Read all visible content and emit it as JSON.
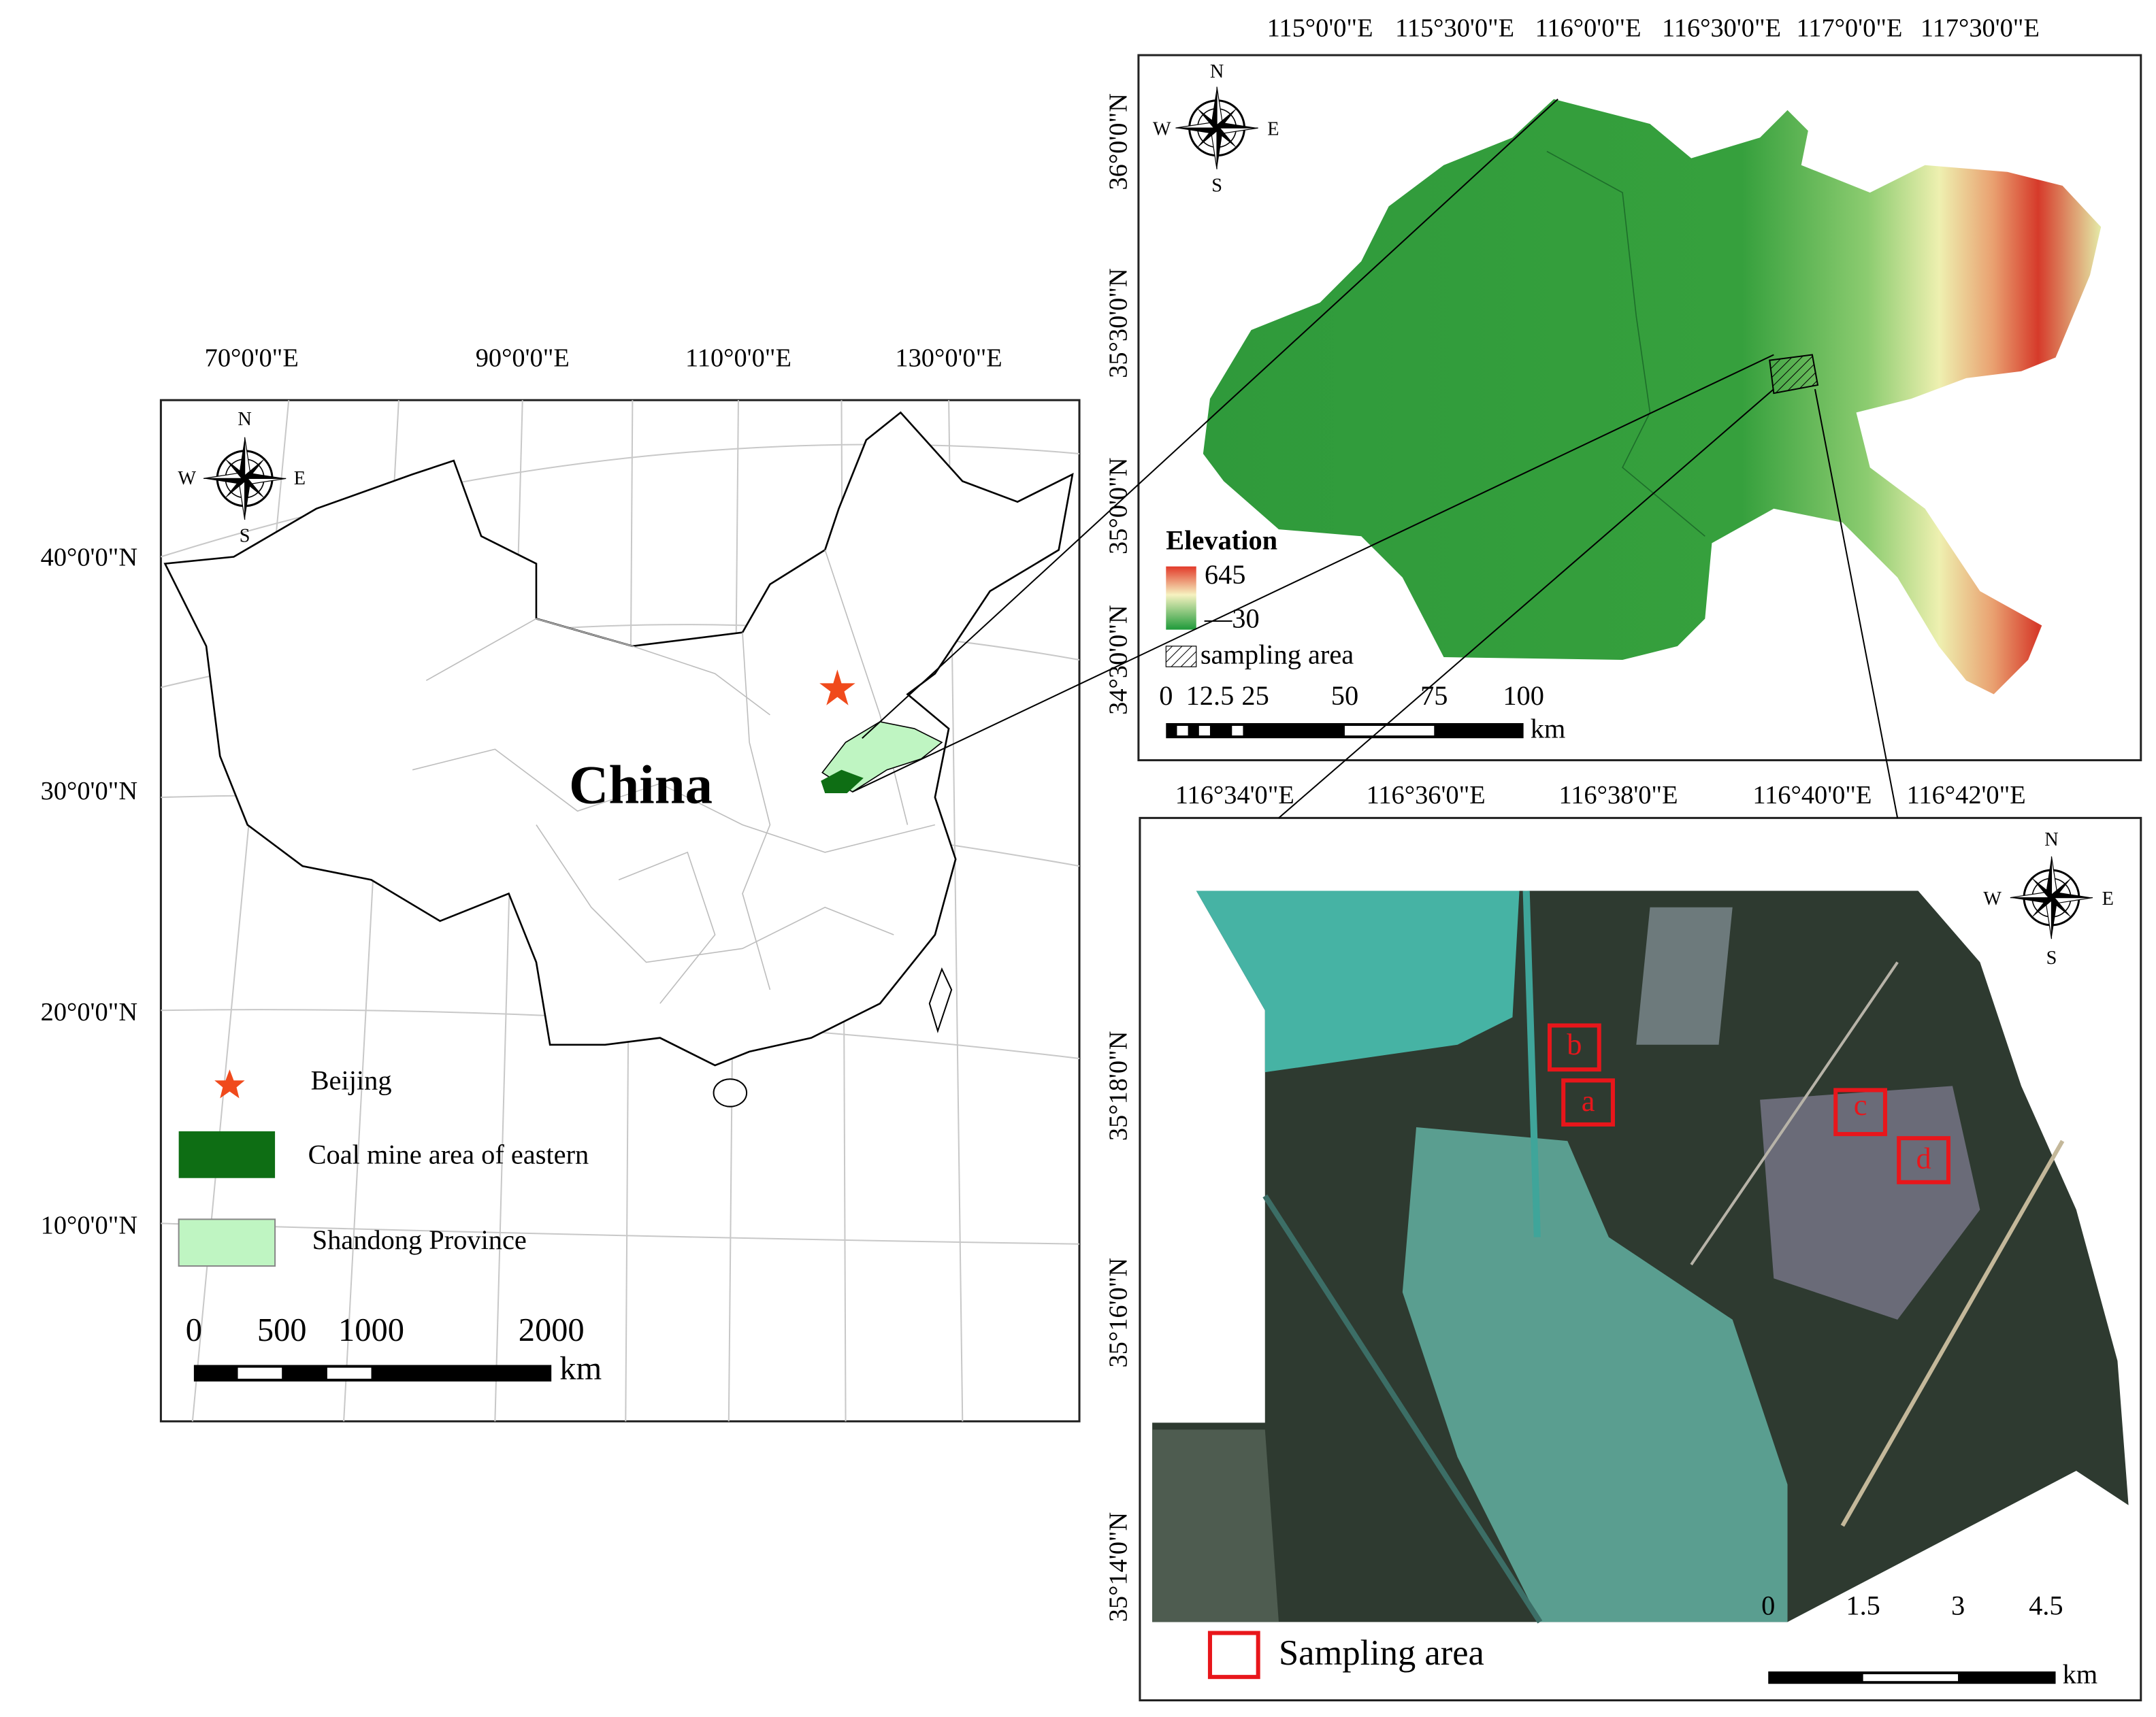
{
  "overview_map": {
    "lon_labels": [
      "70°0'0\"E",
      "90°0'0\"E",
      "110°0'0\"E",
      "130°0'0\"E"
    ],
    "lat_labels": [
      "40°0'0\"N",
      "30°0'0\"N",
      "20°0'0\"N",
      "10°0'0\"N"
    ],
    "compass": {
      "n": "N",
      "w": "W",
      "e": "E",
      "s": "S"
    },
    "country_label": "China",
    "legend": [
      "Beijing",
      "Coal mine area of eastern",
      "Shandong Province"
    ],
    "scale_bar": {
      "ticks": [
        "0",
        "500",
        "1000",
        "2000"
      ],
      "unit": "km"
    }
  },
  "elevation_map": {
    "lon_labels": [
      "115°0'0\"E",
      "115°30'0\"E",
      "116°0'0\"E",
      "116°30'0\"E",
      "117°0'0\"E",
      "117°30'0\"E"
    ],
    "lat_labels": [
      "36°0'0\"N",
      "35°30'0\"N",
      "35°0'0\"N",
      "34°30'0\"N"
    ],
    "compass": {
      "n": "N",
      "w": "W",
      "e": "E",
      "s": "S"
    },
    "legend_title": "Elevation",
    "legend_max": "645",
    "legend_min": "—30",
    "sampling_label": "sampling area",
    "scale_bar": {
      "ticks": [
        "0",
        "12.5",
        "25",
        "50",
        "75",
        "100"
      ],
      "unit": "km"
    }
  },
  "study_area_map": {
    "lon_labels": [
      "116°34'0\"E",
      "116°36'0\"E",
      "116°38'0\"E",
      "116°40'0\"E",
      "116°42'0\"E"
    ],
    "lat_labels": [
      "35°18'0\"N",
      "35°16'0\"N",
      "35°14'0\"N"
    ],
    "compass": {
      "n": "N",
      "w": "W",
      "e": "E",
      "s": "S"
    },
    "sites": [
      "a",
      "b",
      "c",
      "d"
    ],
    "legend": "Sampling area",
    "scale_bar": {
      "ticks": [
        "0",
        "1.5",
        "3",
        "4.5"
      ],
      "unit": "km"
    }
  }
}
